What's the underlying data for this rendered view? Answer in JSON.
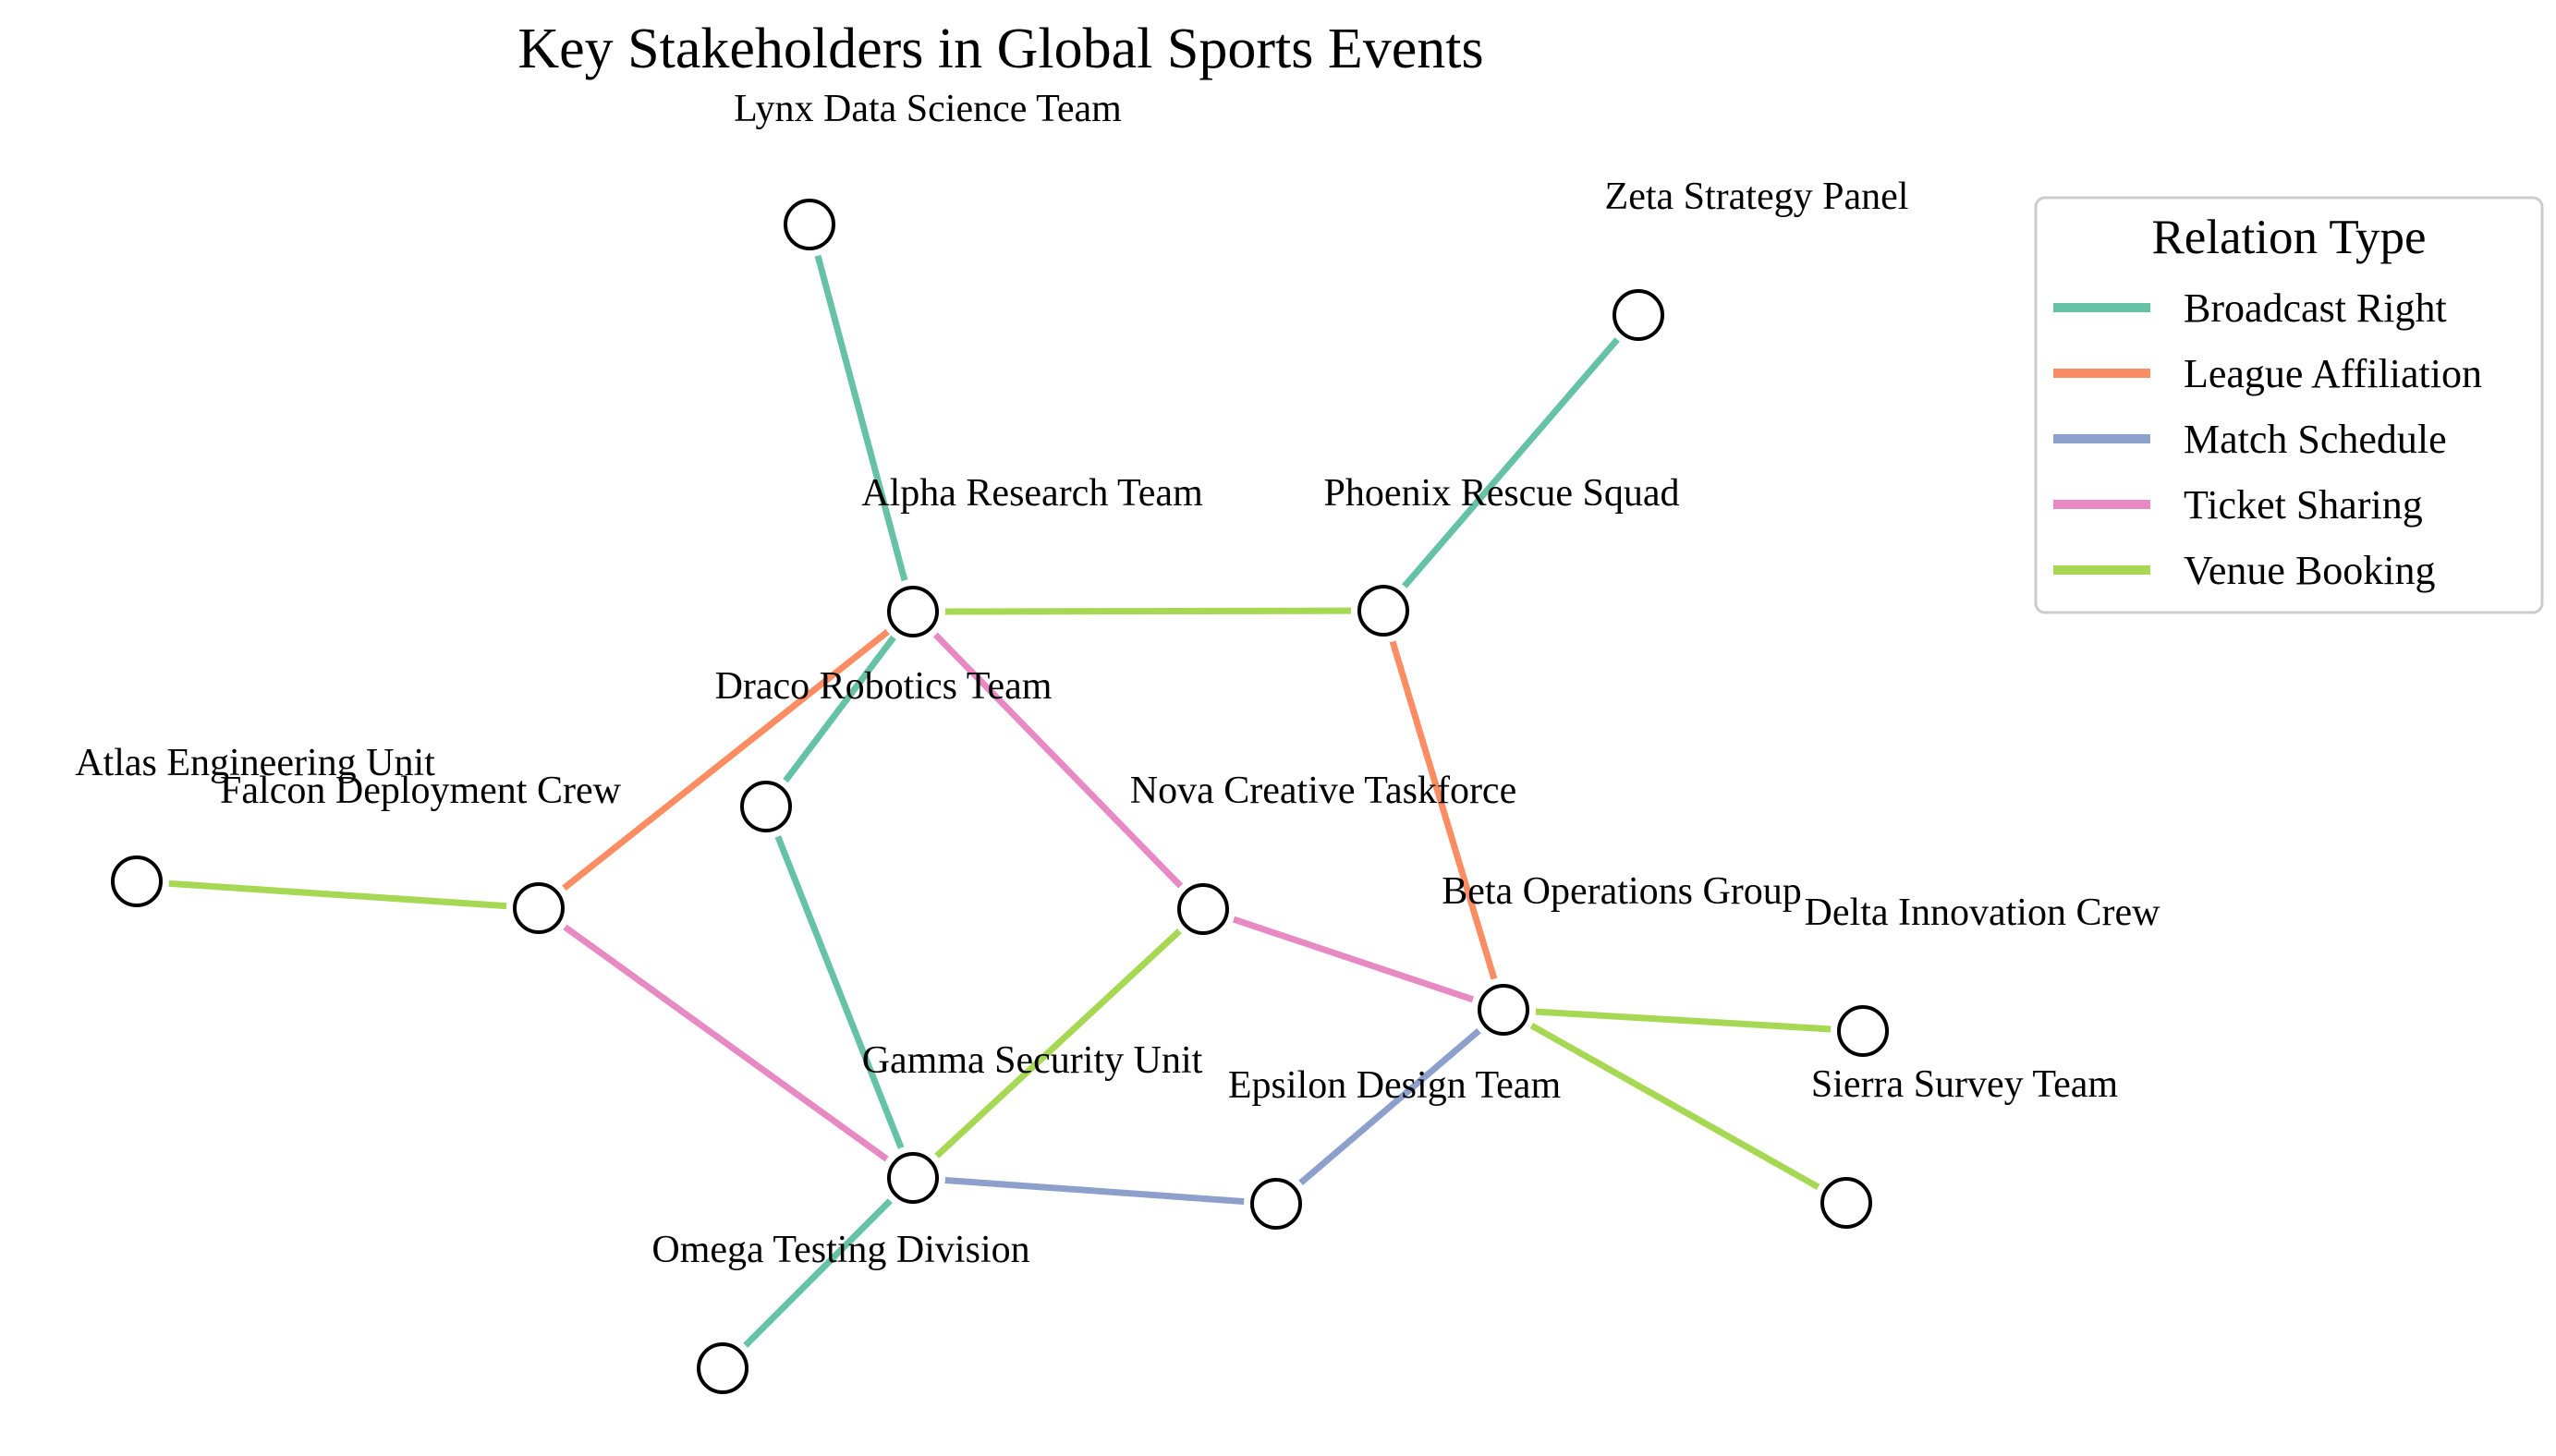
{
  "title": "Key Stakeholders in Global Sports Events",
  "legend": {
    "title": "Relation Type",
    "placement": "top-right",
    "items": [
      {
        "label": "Broadcast Right",
        "color": "#66c2a5"
      },
      {
        "label": "League Affiliation",
        "color": "#fc8d62"
      },
      {
        "label": "Match Schedule",
        "color": "#8da0cb"
      },
      {
        "label": "Ticket Sharing",
        "color": "#e78ac3"
      },
      {
        "label": "Venue Booking",
        "color": "#a6d854"
      }
    ]
  },
  "nodes": [
    {
      "id": "lynx",
      "label": "Lynx Data Science Team"
    },
    {
      "id": "zeta",
      "label": "Zeta Strategy Panel"
    },
    {
      "id": "alpha",
      "label": "Alpha Research Team"
    },
    {
      "id": "phoenix",
      "label": "Phoenix Rescue Squad"
    },
    {
      "id": "draco",
      "label": "Draco Robotics Team"
    },
    {
      "id": "atlas",
      "label": "Atlas Engineering Unit"
    },
    {
      "id": "falcon",
      "label": "Falcon Deployment Crew"
    },
    {
      "id": "nova",
      "label": "Nova Creative Taskforce"
    },
    {
      "id": "beta",
      "label": "Beta Operations Group"
    },
    {
      "id": "delta",
      "label": "Delta Innovation Crew"
    },
    {
      "id": "gamma",
      "label": "Gamma Security Unit"
    },
    {
      "id": "epsilon",
      "label": "Epsilon Design Team"
    },
    {
      "id": "sierra",
      "label": "Sierra Survey Team"
    },
    {
      "id": "omega",
      "label": "Omega Testing Division"
    }
  ],
  "edges": [
    {
      "source": "lynx",
      "target": "alpha",
      "type": "Broadcast Right"
    },
    {
      "source": "zeta",
      "target": "phoenix",
      "type": "Broadcast Right"
    },
    {
      "source": "alpha",
      "target": "draco",
      "type": "Broadcast Right"
    },
    {
      "source": "draco",
      "target": "gamma",
      "type": "Broadcast Right"
    },
    {
      "source": "gamma",
      "target": "omega",
      "type": "Broadcast Right"
    },
    {
      "source": "alpha",
      "target": "falcon",
      "type": "League Affiliation"
    },
    {
      "source": "phoenix",
      "target": "beta",
      "type": "League Affiliation"
    },
    {
      "source": "gamma",
      "target": "epsilon",
      "type": "Match Schedule"
    },
    {
      "source": "epsilon",
      "target": "beta",
      "type": "Match Schedule"
    },
    {
      "source": "alpha",
      "target": "nova",
      "type": "Ticket Sharing"
    },
    {
      "source": "nova",
      "target": "beta",
      "type": "Ticket Sharing"
    },
    {
      "source": "falcon",
      "target": "gamma",
      "type": "Ticket Sharing"
    },
    {
      "source": "alpha",
      "target": "phoenix",
      "type": "Venue Booking"
    },
    {
      "source": "atlas",
      "target": "falcon",
      "type": "Venue Booking"
    },
    {
      "source": "nova",
      "target": "gamma",
      "type": "Venue Booking"
    },
    {
      "source": "beta",
      "target": "delta",
      "type": "Venue Booking"
    },
    {
      "source": "beta",
      "target": "sierra",
      "type": "Venue Booking"
    }
  ]
}
